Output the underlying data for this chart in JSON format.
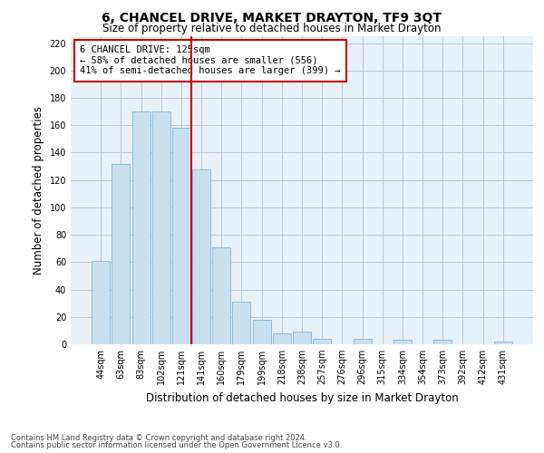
{
  "title": "6, CHANCEL DRIVE, MARKET DRAYTON, TF9 3QT",
  "subtitle": "Size of property relative to detached houses in Market Drayton",
  "xlabel": "Distribution of detached houses by size in Market Drayton",
  "ylabel": "Number of detached properties",
  "footnote1": "Contains HM Land Registry data © Crown copyright and database right 2024.",
  "footnote2": "Contains public sector information licensed under the Open Government Licence v3.0.",
  "categories": [
    "44sqm",
    "63sqm",
    "83sqm",
    "102sqm",
    "121sqm",
    "141sqm",
    "160sqm",
    "179sqm",
    "199sqm",
    "218sqm",
    "238sqm",
    "257sqm",
    "276sqm",
    "296sqm",
    "315sqm",
    "334sqm",
    "354sqm",
    "373sqm",
    "392sqm",
    "412sqm",
    "431sqm"
  ],
  "values": [
    61,
    132,
    170,
    170,
    158,
    128,
    71,
    31,
    18,
    8,
    9,
    4,
    0,
    4,
    0,
    3,
    0,
    3,
    0,
    0,
    2
  ],
  "bar_color": "#c8dff0",
  "bar_edge_color": "#7db8d8",
  "highlight_bar_index": 4,
  "highlight_line_color": "#cc0000",
  "annotation_box_edge_color": "#cc0000",
  "annotation_title": "6 CHANCEL DRIVE: 125sqm",
  "annotation_line1": "← 58% of detached houses are smaller (556)",
  "annotation_line2": "41% of semi-detached houses are larger (399) →",
  "ylim": [
    0,
    225
  ],
  "yticks": [
    0,
    20,
    40,
    60,
    80,
    100,
    120,
    140,
    160,
    180,
    200,
    220
  ],
  "background_color": "#ffffff",
  "plot_bg_color": "#e8f0f8",
  "grid_color": "#b8c8d8",
  "title_fontsize": 10,
  "subtitle_fontsize": 8.5,
  "axis_label_fontsize": 8.5,
  "tick_fontsize": 7,
  "annotation_fontsize": 7.5,
  "footnote_fontsize": 6
}
